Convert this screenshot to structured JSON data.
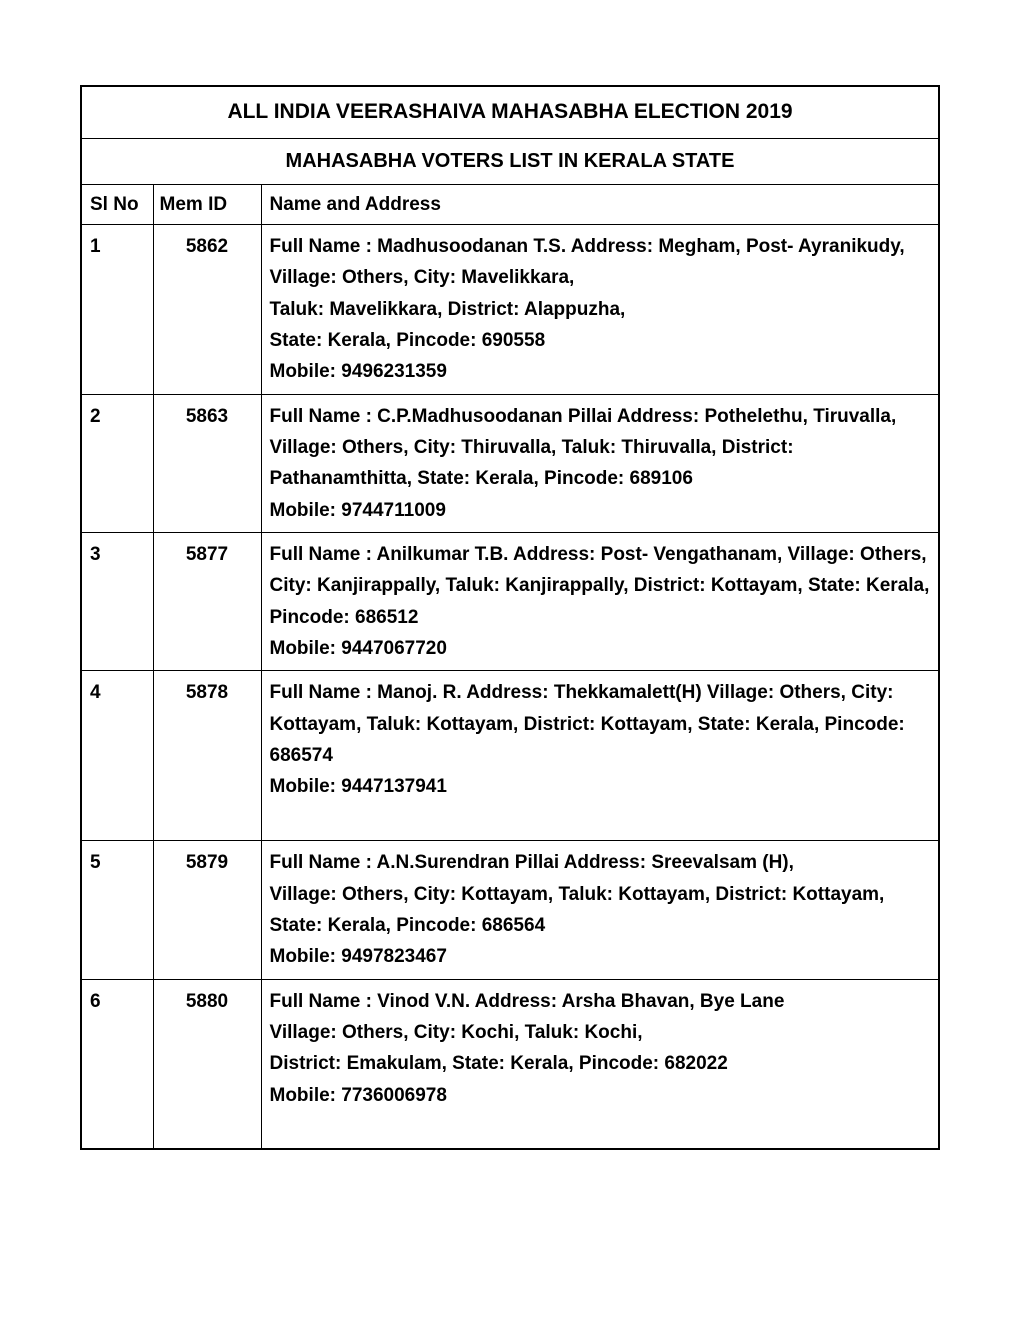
{
  "document": {
    "title": "ALL INDIA VEERASHAIVA MAHASABHA ELECTION 2019",
    "subtitle": "MAHASABHA VOTERS LIST IN KERALA STATE",
    "background_color": "#ffffff",
    "border_color": "#000000",
    "text_color": "#000000",
    "font_family": "Arial",
    "title_fontsize": 21,
    "body_fontsize": 19,
    "columns": {
      "slno": "Sl No",
      "memid": "Mem ID",
      "name": "Name and Address"
    },
    "column_widths": {
      "slno": 72,
      "memid": 108
    },
    "rows": [
      {
        "slno": "1",
        "memid": "5862",
        "lines": [
          "Full Name :  Madhusoodanan T.S. Address: Megham, Post- Ayranikudy, Village: Others,  City: Mavelikkara,",
          "Taluk: Mavelikkara,  District: Alappuzha,",
          "State: Kerala, Pincode: 690558",
          "Mobile: 9496231359"
        ]
      },
      {
        "slno": "2",
        "memid": "5863",
        "lines": [
          "Full Name :  C.P.Madhusoodanan Pillai  Address: Pothelethu, Tiruvalla, Village: Others,  City: Thiruvalla,  Taluk: Thiruvalla, District: Pathanamthitta,  State: Kerala, Pincode: 689106",
          "Mobile: 9744711009"
        ]
      },
      {
        "slno": "3",
        "memid": "5877",
        "lines": [
          "Full Name :  Anilkumar T.B.  Address: Post- Vengathanam, Village: Others,  City: Kanjirappally,  Taluk: Kanjirappally, District: Kottayam,  State: Kerala, Pincode: 686512",
          "Mobile: 9447067720"
        ]
      },
      {
        "slno": "4",
        "memid": "5878",
        "lines": [
          "Full Name :  Manoj. R.  Address: Thekkamalett(H) Village: Others,  City: Kottayam,  Taluk: Kottayam,  District: Kottayam,  State: Kerala, Pincode: 686574",
          "Mobile: 9447137941",
          " "
        ]
      },
      {
        "slno": "5",
        "memid": "5879",
        "lines": [
          "Full Name :  A.N.Surendran Pillai  Address: Sreevalsam (H),",
          "Village: Others,  City: Kottayam,  Taluk: Kottayam,  District: Kottayam,  State: Kerala, Pincode: 686564",
          "Mobile: 9497823467"
        ]
      },
      {
        "slno": "6",
        "memid": "5880",
        "lines": [
          "Full Name :  Vinod V.N.  Address: Arsha Bhavan, Bye Lane",
          "Village: Others,  City: Kochi,  Taluk: Kochi,",
          "District: Emakulam,  State: Kerala, Pincode: 682022",
          "Mobile: 7736006978",
          " "
        ]
      }
    ]
  }
}
